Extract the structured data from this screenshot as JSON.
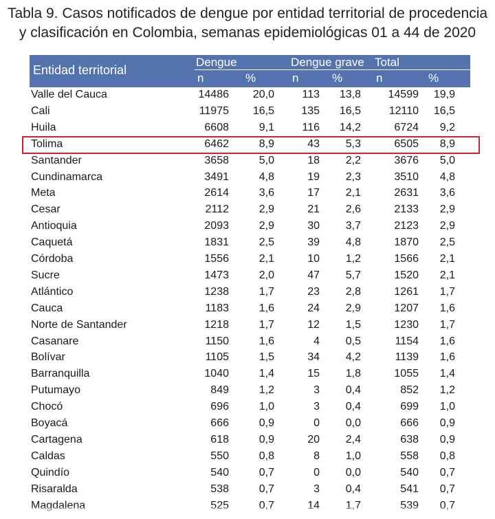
{
  "title_line1": "Tabla 9. Casos notificados de dengue por entidad territorial de procedencia",
  "title_line2": "y clasificación en Colombia, semanas epidemiológicas 01 a 44 de 2020",
  "header": {
    "entity": "Entidad territorial",
    "dengue": "Dengue",
    "grave": "Dengue grave",
    "total": "Total",
    "n": "n",
    "pct": "%"
  },
  "highlight_color": "#d0202a",
  "rows": [
    [
      "Valle del Cauca",
      "14486",
      "20,0",
      "113",
      "13,8",
      "14599",
      "19,9"
    ],
    [
      "Cali",
      "11975",
      "16,5",
      "135",
      "16,5",
      "12110",
      "16,5"
    ],
    [
      "Huila",
      "6608",
      "9,1",
      "116",
      "14,2",
      "6724",
      "9,2"
    ],
    [
      "Tolima",
      "6462",
      "8,9",
      "43",
      "5,3",
      "6505",
      "8,9"
    ],
    [
      "Santander",
      "3658",
      "5,0",
      "18",
      "2,2",
      "3676",
      "5,0"
    ],
    [
      "Cundinamarca",
      "3491",
      "4,8",
      "19",
      "2,3",
      "3510",
      "4,8"
    ],
    [
      "Meta",
      "2614",
      "3,6",
      "17",
      "2,1",
      "2631",
      "3,6"
    ],
    [
      "Cesar",
      "2112",
      "2,9",
      "21",
      "2,6",
      "2133",
      "2,9"
    ],
    [
      "Antioquia",
      "2093",
      "2,9",
      "30",
      "3,7",
      "2123",
      "2,9"
    ],
    [
      "Caquetá",
      "1831",
      "2,5",
      "39",
      "4,8",
      "1870",
      "2,5"
    ],
    [
      "Córdoba",
      "1556",
      "2,1",
      "10",
      "1,2",
      "1566",
      "2,1"
    ],
    [
      "Sucre",
      "1473",
      "2,0",
      "47",
      "5,7",
      "1520",
      "2,1"
    ],
    [
      "Atlántico",
      "1238",
      "1,7",
      "23",
      "2,8",
      "1261",
      "1,7"
    ],
    [
      "Cauca",
      "1183",
      "1,6",
      "24",
      "2,9",
      "1207",
      "1,6"
    ],
    [
      "Norte de Santander",
      "1218",
      "1,7",
      "12",
      "1,5",
      "1230",
      "1,7"
    ],
    [
      "Casanare",
      "1150",
      "1,6",
      "4",
      "0,5",
      "1154",
      "1,6"
    ],
    [
      "Bolívar",
      "1105",
      "1,5",
      "34",
      "4,2",
      "1139",
      "1,6"
    ],
    [
      "Barranquilla",
      "1040",
      "1,4",
      "15",
      "1,8",
      "1055",
      "1,4"
    ],
    [
      "Putumayo",
      "849",
      "1,2",
      "3",
      "0,4",
      "852",
      "1,2"
    ],
    [
      "Chocó",
      "696",
      "1,0",
      "3",
      "0,4",
      "699",
      "1,0"
    ],
    [
      "Boyacá",
      "666",
      "0,9",
      "0",
      "0,0",
      "666",
      "0,9"
    ],
    [
      "Cartagena",
      "618",
      "0,9",
      "20",
      "2,4",
      "638",
      "0,9"
    ],
    [
      "Caldas",
      "550",
      "0,8",
      "8",
      "1,0",
      "558",
      "0,8"
    ],
    [
      "Quindío",
      "540",
      "0,7",
      "0",
      "0,0",
      "540",
      "0,7"
    ],
    [
      "Risaralda",
      "538",
      "0,7",
      "3",
      "0,4",
      "541",
      "0,7"
    ],
    [
      "Magdalena",
      "525",
      "0,7",
      "14",
      "1,7",
      "539",
      "0,7"
    ]
  ]
}
